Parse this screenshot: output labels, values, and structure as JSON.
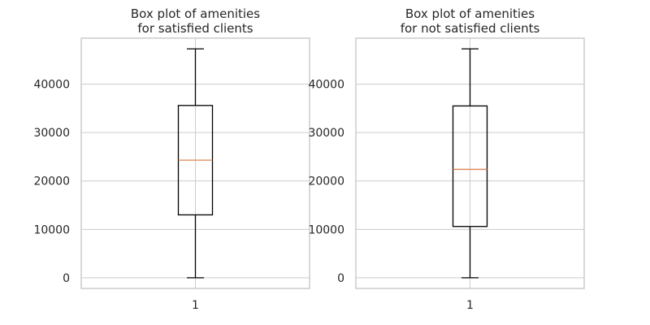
{
  "chart_data": [
    {
      "type": "box",
      "title_line1": "Box plot of amenities",
      "title_line2": "for satisfied clients",
      "categories": [
        "1"
      ],
      "ylim": [
        -2200,
        49500
      ],
      "yticks": [
        0,
        10000,
        20000,
        30000,
        40000
      ],
      "ytick_labels": [
        "0",
        "10000",
        "20000",
        "30000",
        "40000"
      ],
      "grid": "y",
      "boxes": [
        {
          "label": "1",
          "whisker_low": 0,
          "q1": 13000,
          "median": 24300,
          "q3": 35600,
          "whisker_high": 47300
        }
      ]
    },
    {
      "type": "box",
      "title_line1": "Box plot of amenities",
      "title_line2": "for not satisfied clients",
      "categories": [
        "1"
      ],
      "ylim": [
        -2200,
        49500
      ],
      "yticks": [
        0,
        10000,
        20000,
        30000,
        40000
      ],
      "ytick_labels": [
        "0",
        "10000",
        "20000",
        "30000",
        "40000"
      ],
      "grid": "y",
      "boxes": [
        {
          "label": "1",
          "whisker_low": 0,
          "q1": 10600,
          "median": 22400,
          "q3": 35500,
          "whisker_high": 47300
        }
      ]
    }
  ],
  "colors": {
    "axes_edge": "#cccccc",
    "grid": "#cccccc",
    "box": "#000000",
    "median": "#dd8452",
    "text": "#262626"
  }
}
